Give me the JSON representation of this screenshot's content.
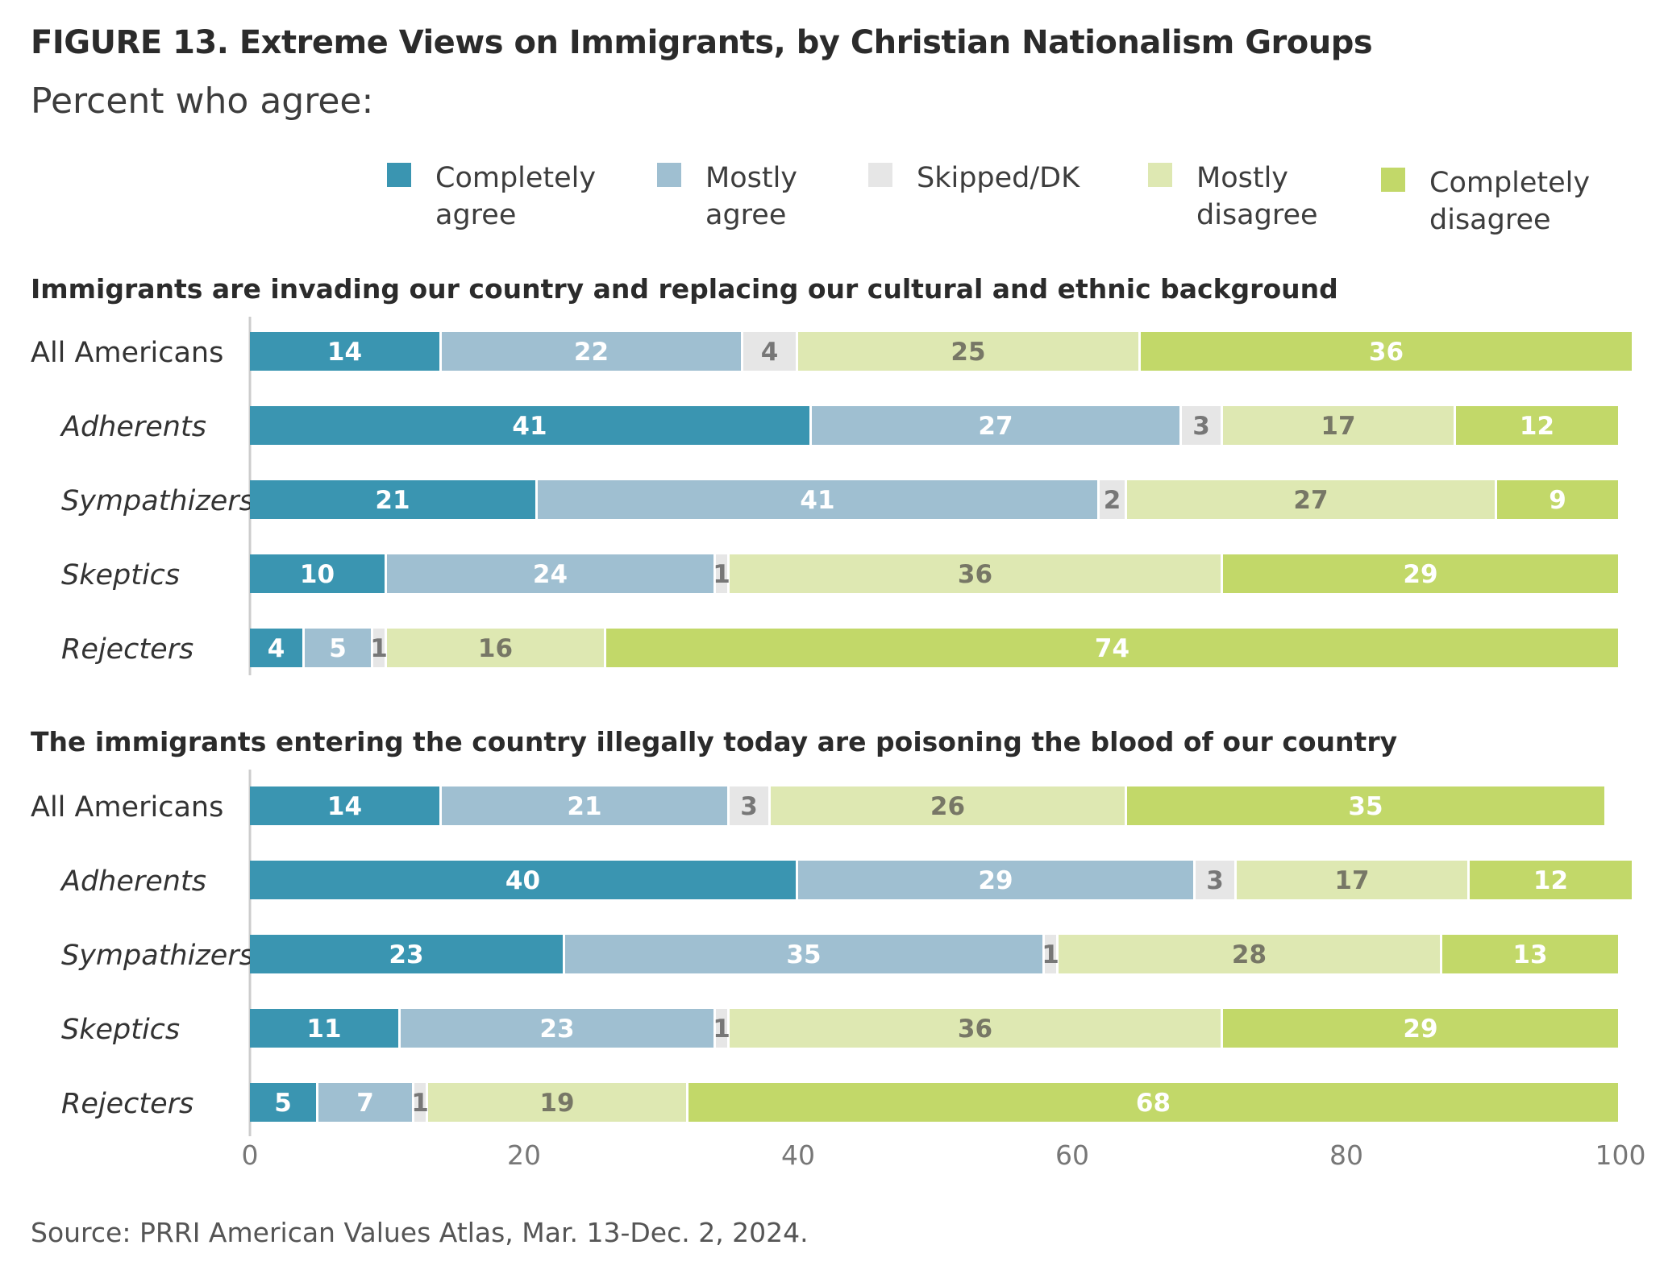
{
  "figure": {
    "title": "FIGURE 13.  Extreme Views on Immigrants, by Christian Nationalism Groups",
    "subtitle": "Percent who agree:",
    "source": "Source: PRRI American Values Atlas, Mar. 13-Dec. 2, 2024."
  },
  "legend": [
    {
      "label": "Completely agree",
      "color": "#3a95b1"
    },
    {
      "label": "Mostly agree",
      "color": "#9fbfd1"
    },
    {
      "label": "Skipped/DK",
      "color": "#e6e6e6"
    },
    {
      "label": "Mostly disagree",
      "color": "#dee8b2"
    },
    {
      "label": "Completely disagree",
      "color": "#c2d869"
    }
  ],
  "chart_data": [
    {
      "type": "bar",
      "orientation": "horizontal",
      "stacked": true,
      "title": "Immigrants are invading our country and replacing our cultural and ethnic background",
      "categories": [
        "All Americans",
        "Adherents",
        "Sympathizers",
        "Skeptics",
        "Rejecters"
      ],
      "series": [
        {
          "name": "Completely agree",
          "values": [
            14,
            41,
            21,
            10,
            4
          ]
        },
        {
          "name": "Mostly agree",
          "values": [
            22,
            27,
            41,
            24,
            5
          ]
        },
        {
          "name": "Skipped/DK",
          "values": [
            4,
            3,
            2,
            1,
            1
          ]
        },
        {
          "name": "Mostly disagree",
          "values": [
            25,
            17,
            27,
            36,
            16
          ]
        },
        {
          "name": "Completely disagree",
          "values": [
            36,
            12,
            9,
            29,
            74
          ]
        }
      ],
      "xlim": [
        0,
        100
      ]
    },
    {
      "type": "bar",
      "orientation": "horizontal",
      "stacked": true,
      "title": "The immigrants entering the country illegally today are poisoning the blood of our country",
      "categories": [
        "All Americans",
        "Adherents",
        "Sympathizers",
        "Skeptics",
        "Rejecters"
      ],
      "series": [
        {
          "name": "Completely agree",
          "values": [
            14,
            40,
            23,
            11,
            5
          ]
        },
        {
          "name": "Mostly agree",
          "values": [
            21,
            29,
            35,
            23,
            7
          ]
        },
        {
          "name": "Skipped/DK",
          "values": [
            3,
            3,
            1,
            1,
            1
          ]
        },
        {
          "name": "Mostly disagree",
          "values": [
            26,
            17,
            28,
            36,
            19
          ]
        },
        {
          "name": "Completely disagree",
          "values": [
            35,
            12,
            13,
            29,
            68
          ]
        }
      ],
      "xlim": [
        0,
        100
      ],
      "xticks": [
        "0",
        "20",
        "40",
        "60",
        "80",
        "100"
      ]
    }
  ]
}
